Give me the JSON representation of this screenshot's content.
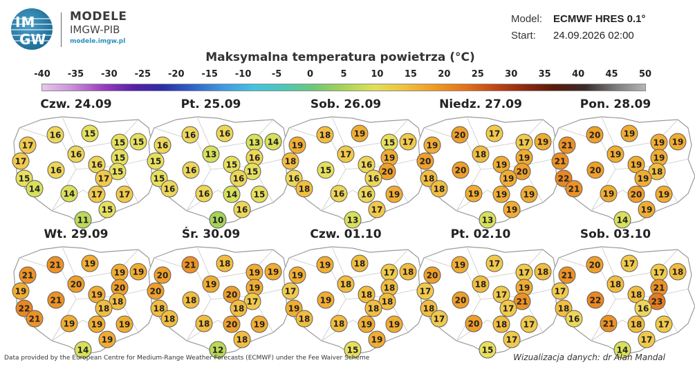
{
  "header": {
    "logo_line1": "IM",
    "logo_line2": "GW",
    "brand_title": "MODELE",
    "brand_subtitle": "IMGW-PIB",
    "brand_url": "modele.imgw.pl",
    "model_label": "Model:",
    "model_value": "ECMWF HRES 0.1°",
    "start_label": "Start:",
    "start_value": "24.09.2026 02:00"
  },
  "title": "Maksymalna temperatura powietrza (°C)",
  "colorbar": {
    "ticks": [
      "-40",
      "-35",
      "-30",
      "-25",
      "-20",
      "-15",
      "-10",
      "-5",
      "0",
      "5",
      "10",
      "15",
      "20",
      "25",
      "30",
      "35",
      "40",
      "45",
      "50"
    ],
    "min": -40,
    "max": 50
  },
  "days": [
    {
      "label": "Czw. 24.09",
      "values": [
        16,
        15,
        15,
        17,
        15,
        16,
        17,
        16,
        15,
        16,
        15,
        15,
        17,
        14,
        14,
        17,
        17,
        15,
        11
      ]
    },
    {
      "label": "Pt. 25.09",
      "values": [
        16,
        16,
        13,
        16,
        14,
        13,
        15,
        16,
        16,
        15,
        15,
        15,
        16,
        16,
        16,
        14,
        15,
        16,
        10
      ]
    },
    {
      "label": "Sob. 26.09",
      "values": [
        18,
        19,
        15,
        19,
        17,
        17,
        18,
        15,
        19,
        16,
        16,
        20,
        16,
        18,
        16,
        16,
        19,
        17,
        13
      ]
    },
    {
      "label": "Niedz. 27.09",
      "values": [
        20,
        17,
        17,
        19,
        19,
        18,
        20,
        20,
        19,
        19,
        18,
        20,
        19,
        18,
        19,
        19,
        19,
        19,
        13
      ]
    },
    {
      "label": "Pon. 28.09",
      "values": [
        20,
        19,
        19,
        21,
        19,
        19,
        21,
        20,
        19,
        19,
        22,
        18,
        19,
        21,
        19,
        20,
        19,
        19,
        14
      ]
    },
    {
      "label": "Wt. 29.09",
      "values": [
        21,
        19,
        19,
        21,
        19,
        20,
        19,
        21,
        20,
        19,
        22,
        18,
        18,
        21,
        19,
        19,
        19,
        19,
        14
      ]
    },
    {
      "label": "Śr. 30.09",
      "values": [
        21,
        18,
        19,
        20,
        19,
        19,
        20,
        18,
        19,
        20,
        18,
        17,
        18,
        18,
        18,
        20,
        19,
        18,
        12
      ]
    },
    {
      "label": "Czw. 01.10",
      "values": [
        19,
        18,
        17,
        19,
        18,
        18,
        17,
        19,
        18,
        18,
        19,
        18,
        18,
        18,
        18,
        19,
        19,
        19,
        15
      ]
    },
    {
      "label": "Pt. 02.10",
      "values": [
        19,
        17,
        17,
        20,
        18,
        18,
        17,
        20,
        19,
        17,
        18,
        21,
        17,
        17,
        20,
        18,
        17,
        17,
        15
      ]
    },
    {
      "label": "Sob. 03.10",
      "values": [
        20,
        17,
        17,
        21,
        18,
        18,
        17,
        22,
        21,
        18,
        18,
        23,
        16,
        16,
        21,
        18,
        17,
        17,
        14
      ]
    }
  ],
  "footer": {
    "credit": "Data provided by the European Centre for Medium-Range Weather Forecasts (ECMWF) under the Fee Waiver Scheme",
    "visualization": "Wizualizacja danych: dr Alan Mandal"
  }
}
